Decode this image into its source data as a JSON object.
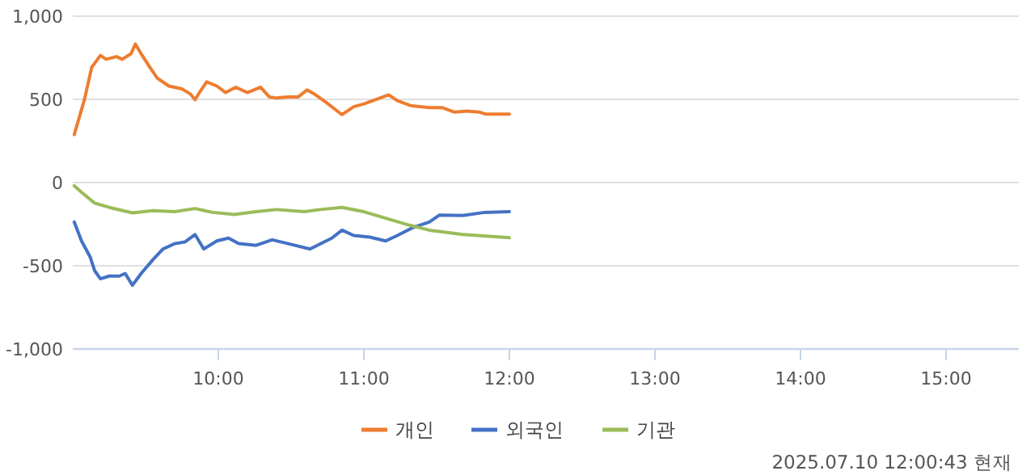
{
  "chart_data": {
    "type": "line",
    "xlim": [
      9,
      15.5
    ],
    "xticks": [
      {
        "value": 10,
        "label": "10:00"
      },
      {
        "value": 11,
        "label": "11:00"
      },
      {
        "value": 12,
        "label": "12:00"
      },
      {
        "value": 13,
        "label": "13:00"
      },
      {
        "value": 14,
        "label": "14:00"
      },
      {
        "value": 15,
        "label": "15:00"
      }
    ],
    "ylim": [
      -1000,
      1000
    ],
    "yticks": [
      {
        "value": -1000,
        "label": "-1,000"
      },
      -500,
      0,
      500,
      {
        "value": 1000,
        "label": "1,000"
      }
    ],
    "grid": "y",
    "legend": "bottom",
    "annotations": [
      "2025.07.10 12:00:43 현재"
    ],
    "series": [
      {
        "name": "개인",
        "color": "#ed7d31",
        "x": [
          9.01,
          9.08,
          9.13,
          9.19,
          9.23,
          9.3,
          9.34,
          9.4,
          9.43,
          9.47,
          9.53,
          9.58,
          9.66,
          9.75,
          9.81,
          9.84,
          9.87,
          9.92,
          9.99,
          10.05,
          10.12,
          10.2,
          10.29,
          10.35,
          10.4,
          10.48,
          10.55,
          10.61,
          10.66,
          10.74,
          10.85,
          10.93,
          11.0,
          11.08,
          11.17,
          11.23,
          11.32,
          11.45,
          11.54,
          11.62,
          11.71,
          11.79,
          11.84,
          12.0
        ],
        "values": [
          288,
          498,
          692,
          764,
          741,
          757,
          741,
          774,
          832,
          774,
          692,
          628,
          580,
          563,
          531,
          498,
          541,
          605,
          580,
          541,
          573,
          541,
          573,
          515,
          508,
          515,
          515,
          557,
          532,
          482,
          408,
          456,
          473,
          498,
          527,
          492,
          463,
          450,
          450,
          424,
          430,
          424,
          411,
          411
        ]
      },
      {
        "name": "외국인",
        "color": "#4472c4",
        "x": [
          9.01,
          9.06,
          9.12,
          9.15,
          9.19,
          9.25,
          9.32,
          9.36,
          9.41,
          9.47,
          9.55,
          9.62,
          9.7,
          9.77,
          9.84,
          9.9,
          9.99,
          10.07,
          10.14,
          10.26,
          10.37,
          10.48,
          10.63,
          10.78,
          10.85,
          10.93,
          11.04,
          11.15,
          11.23,
          11.34,
          11.45,
          11.52,
          11.68,
          11.83,
          12.0
        ],
        "values": [
          -237,
          -351,
          -448,
          -529,
          -578,
          -562,
          -562,
          -546,
          -617,
          -546,
          -464,
          -399,
          -367,
          -357,
          -312,
          -399,
          -351,
          -334,
          -367,
          -377,
          -344,
          -367,
          -399,
          -334,
          -286,
          -318,
          -328,
          -351,
          -318,
          -269,
          -237,
          -195,
          -198,
          -179,
          -175
        ]
      },
      {
        "name": "기관",
        "color": "#9bbb59",
        "x": [
          9.01,
          9.06,
          9.15,
          9.25,
          9.41,
          9.55,
          9.7,
          9.84,
          9.96,
          10.11,
          10.26,
          10.4,
          10.59,
          10.7,
          10.85,
          11.0,
          11.15,
          11.3,
          11.45,
          11.68,
          12.0
        ],
        "values": [
          -19,
          -58,
          -123,
          -149,
          -182,
          -169,
          -175,
          -156,
          -179,
          -192,
          -175,
          -162,
          -175,
          -162,
          -149,
          -175,
          -214,
          -253,
          -286,
          -312,
          -331
        ]
      }
    ]
  }
}
